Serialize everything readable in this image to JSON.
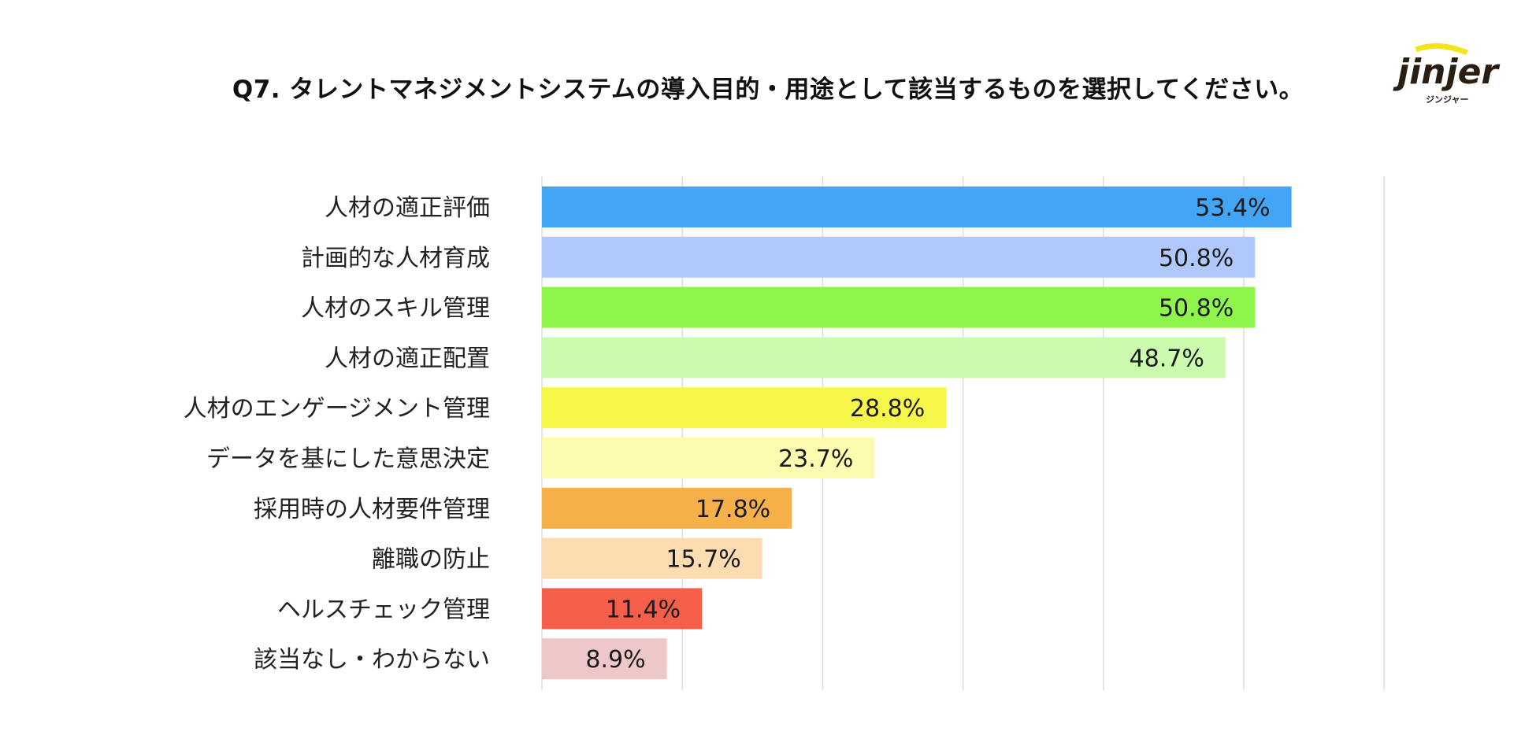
{
  "chart_data": {
    "type": "bar",
    "orientation": "horizontal",
    "title": "Q7. タレントマネジメントシステムの導入目的・用途として該当するものを選択してください。",
    "categories": [
      "人材の適正評価",
      "計画的な人材育成",
      "人材のスキル管理",
      "人材の適正配置",
      "人材のエンゲージメント管理",
      "データを基にした意思決定",
      "採用時の人材要件管理",
      "離職の防止",
      "ヘルスチェック管理",
      "該当なし・わからない"
    ],
    "values": [
      53.4,
      50.8,
      50.8,
      48.7,
      28.8,
      23.7,
      17.8,
      15.7,
      11.4,
      8.9
    ],
    "value_labels": [
      "53.4%",
      "50.8%",
      "50.8%",
      "48.7%",
      "28.8%",
      "23.7%",
      "17.8%",
      "15.7%",
      "11.4%",
      "8.9%"
    ],
    "colors": [
      "#42a5f5",
      "#b0c8fb",
      "#8ef54a",
      "#ccfbb0",
      "#f7f74a",
      "#fcfbb0",
      "#f5b04a",
      "#fcdcb0",
      "#f55f4a",
      "#eec8c8"
    ],
    "xlim": [
      0,
      60
    ],
    "grid": true,
    "gridline_step": 10,
    "xlabel": "",
    "ylabel": "",
    "legend": "none"
  },
  "logo": {
    "name": "jinjer",
    "subtitle": "ジンジャー",
    "accent_color": "#f2e51c",
    "text_color": "#2a1d12"
  }
}
